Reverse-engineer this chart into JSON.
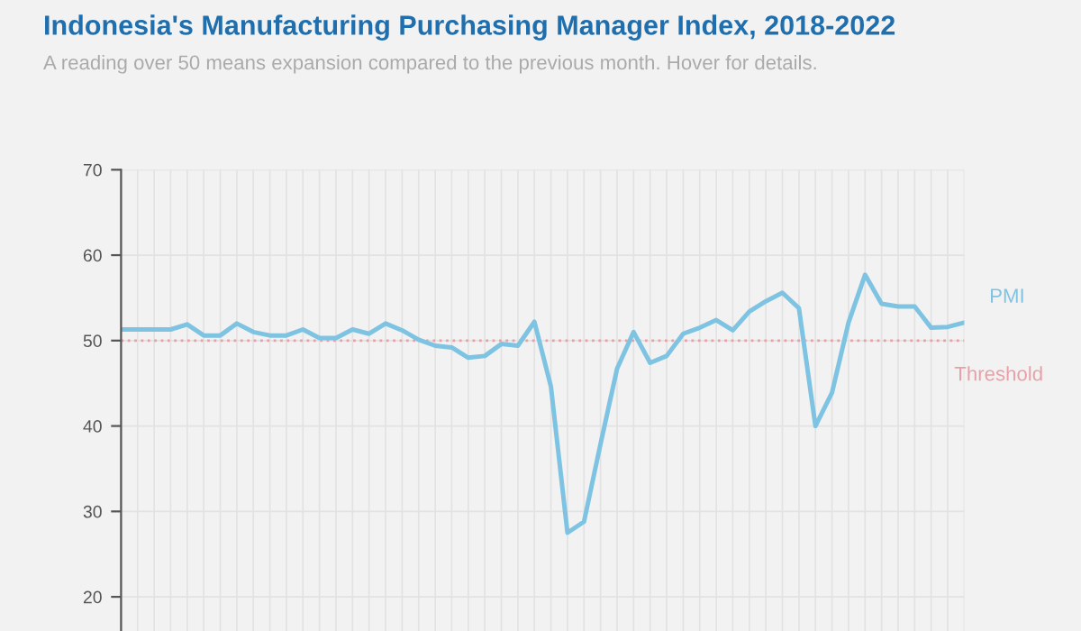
{
  "chart_data": {
    "type": "line",
    "title": "Indonesia's Manufacturing Purchasing Manager Index, 2018-2022",
    "subtitle": "A reading over 50 means expansion compared to the previous month. Hover for details.",
    "categories": [
      null,
      null,
      null,
      null,
      null,
      null,
      null,
      null,
      null,
      null,
      null,
      null,
      null,
      null,
      null,
      null,
      null,
      null,
      null,
      null,
      null,
      null,
      null,
      null,
      null,
      null,
      null,
      null,
      null,
      null,
      null,
      null,
      null,
      null,
      null,
      null,
      null,
      null,
      null,
      null,
      null,
      null,
      null,
      null,
      null,
      null,
      null,
      null,
      null,
      null,
      null,
      null
    ],
    "series": [
      {
        "name": "PMI",
        "color": "#7ec4e2",
        "values": [
          51.3,
          51.3,
          51.3,
          51.3,
          51.9,
          50.6,
          50.6,
          52.0,
          51.0,
          50.6,
          50.6,
          51.3,
          50.3,
          50.3,
          51.3,
          50.8,
          52.0,
          51.2,
          50.1,
          49.4,
          49.2,
          48.0,
          48.2,
          49.6,
          49.4,
          52.2,
          44.6,
          27.5,
          28.8,
          37.9,
          46.7,
          51.0,
          47.4,
          48.2,
          50.8,
          51.5,
          52.4,
          51.2,
          53.4,
          54.6,
          55.6,
          53.8,
          40.0,
          43.9,
          52.1,
          57.7,
          54.3,
          54.0,
          54.0,
          51.5,
          51.6,
          52.1
        ]
      }
    ],
    "ylim": [
      16,
      70
    ],
    "yticks": [
      20,
      30,
      40,
      50,
      60,
      70
    ],
    "ref_lines": [
      {
        "axis": "y",
        "value": 50,
        "label": "Threshold",
        "color": "#e8a0a8",
        "line_style": "dotted"
      }
    ],
    "grid": true,
    "legend": false,
    "tick_labels": "y"
  }
}
